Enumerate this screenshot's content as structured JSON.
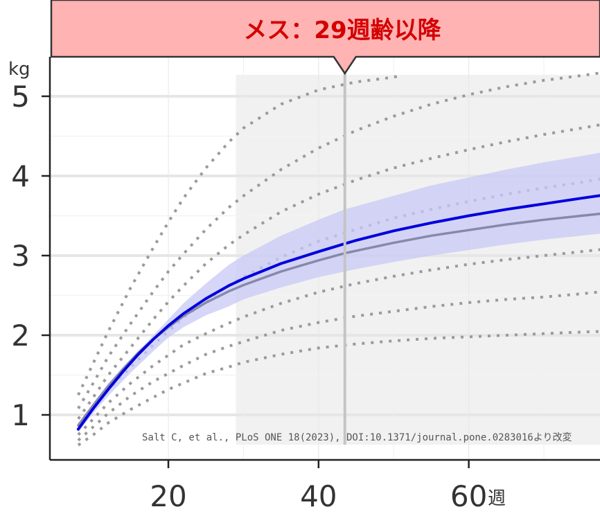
{
  "banner": {
    "text": "メス：29週齢以降",
    "bg_color": "#ffb3b3",
    "text_color": "#d40000"
  },
  "citation": "Salt C, et al., PLoS ONE 18(2023), DOI:10.1371/journal.pone.0283016より改変",
  "chart_data": {
    "type": "line",
    "title": "",
    "xlabel": "週",
    "ylabel": "kg",
    "xlim": [
      5,
      78
    ],
    "ylim": [
      0.6,
      5.3
    ],
    "x_ticks": [
      20,
      40,
      60
    ],
    "x_tick_labels": [
      "20",
      "40",
      "60"
    ],
    "y_ticks": [
      1,
      2,
      3,
      4,
      5
    ],
    "y_tick_labels": [
      "1",
      "2",
      "3",
      "4",
      "5"
    ],
    "grid": true,
    "highlight_region": {
      "x_start": 29,
      "x_end": 78
    },
    "vertical_marker_x": 43.5,
    "series": [
      {
        "role": "main",
        "color": "#0000dd",
        "x": [
          8,
          10,
          12,
          14,
          16,
          18,
          20,
          22,
          25,
          28,
          30,
          35,
          40,
          43.5,
          45,
          50,
          55,
          60,
          65,
          70,
          75,
          78
        ],
        "values": [
          0.82,
          1.08,
          1.32,
          1.55,
          1.76,
          1.95,
          2.12,
          2.27,
          2.46,
          2.62,
          2.71,
          2.9,
          3.05,
          3.15,
          3.19,
          3.31,
          3.41,
          3.5,
          3.58,
          3.65,
          3.72,
          3.76
        ]
      },
      {
        "role": "reference",
        "color": "#8888aa",
        "x": [
          8,
          10,
          12,
          14,
          16,
          18,
          20,
          22,
          25,
          28,
          30,
          35,
          40,
          43.5,
          45,
          50,
          55,
          60,
          65,
          70,
          75,
          78
        ],
        "values": [
          0.87,
          1.12,
          1.36,
          1.58,
          1.78,
          1.95,
          2.1,
          2.24,
          2.41,
          2.55,
          2.63,
          2.8,
          2.94,
          3.03,
          3.06,
          3.16,
          3.25,
          3.32,
          3.39,
          3.45,
          3.5,
          3.53
        ]
      }
    ],
    "band": {
      "color": "#c8c8f5",
      "x": [
        8,
        10,
        12,
        15,
        18,
        20,
        22,
        25,
        28,
        30,
        35,
        40,
        43.5,
        45,
        50,
        55,
        60,
        65,
        70,
        75,
        78
      ],
      "lower": [
        0.78,
        1.02,
        1.24,
        1.53,
        1.8,
        1.97,
        2.1,
        2.25,
        2.36,
        2.45,
        2.6,
        2.73,
        2.8,
        2.83,
        2.92,
        3.0,
        3.07,
        3.14,
        3.2,
        3.25,
        3.28
      ],
      "upper": [
        0.88,
        1.15,
        1.4,
        1.7,
        2.0,
        2.2,
        2.4,
        2.65,
        2.88,
        3.0,
        3.25,
        3.45,
        3.58,
        3.62,
        3.75,
        3.88,
        3.98,
        4.08,
        4.17,
        4.25,
        4.3
      ]
    },
    "dotted_curves": [
      {
        "x": [
          8,
          10,
          12,
          15,
          18,
          20,
          22,
          25,
          28,
          30,
          35,
          40,
          45,
          50,
          55,
          60,
          65,
          70,
          75,
          78
        ],
        "values": [
          0.62,
          0.75,
          0.9,
          1.07,
          1.22,
          1.32,
          1.4,
          1.52,
          1.6,
          1.66,
          1.76,
          1.84,
          1.89,
          1.93,
          1.96,
          1.98,
          2.0,
          2.02,
          2.04,
          2.05
        ]
      },
      {
        "x": [
          8,
          10,
          12,
          15,
          18,
          20,
          22,
          25,
          28,
          30,
          35,
          40,
          45,
          50,
          55,
          60,
          65,
          70,
          75,
          78
        ],
        "values": [
          0.68,
          0.85,
          1.02,
          1.24,
          1.42,
          1.52,
          1.62,
          1.76,
          1.86,
          1.92,
          2.06,
          2.16,
          2.24,
          2.3,
          2.36,
          2.41,
          2.45,
          2.48,
          2.52,
          2.55
        ]
      },
      {
        "x": [
          8,
          10,
          12,
          15,
          18,
          20,
          22,
          25,
          28,
          30,
          35,
          40,
          45,
          50,
          55,
          60,
          65,
          70,
          75,
          78
        ],
        "values": [
          0.75,
          0.95,
          1.15,
          1.4,
          1.62,
          1.75,
          1.88,
          2.02,
          2.15,
          2.23,
          2.4,
          2.54,
          2.65,
          2.74,
          2.82,
          2.89,
          2.95,
          3.0,
          3.05,
          3.08
        ]
      },
      {
        "x": [
          8,
          10,
          12,
          15,
          18,
          20,
          22,
          25,
          28,
          30,
          35,
          40,
          45,
          50,
          55,
          60,
          65,
          70,
          75,
          78
        ],
        "values": [
          0.85,
          1.08,
          1.32,
          1.6,
          1.88,
          2.05,
          2.22,
          2.43,
          2.62,
          2.73,
          2.98,
          3.18,
          3.33,
          3.47,
          3.58,
          3.68,
          3.77,
          3.85,
          3.92,
          3.97
        ]
      },
      {
        "x": [
          8,
          10,
          12,
          15,
          18,
          20,
          22,
          25,
          28,
          30,
          35,
          40,
          45,
          50,
          55,
          60,
          65,
          70,
          75,
          78
        ],
        "values": [
          0.95,
          1.22,
          1.5,
          1.85,
          2.2,
          2.42,
          2.62,
          2.9,
          3.13,
          3.26,
          3.55,
          3.77,
          3.95,
          4.1,
          4.22,
          4.33,
          4.43,
          4.52,
          4.6,
          4.65
        ]
      },
      {
        "x": [
          8,
          10,
          12,
          15,
          18,
          20,
          22,
          25,
          28,
          30,
          35,
          40,
          45,
          50,
          55,
          60,
          65,
          70,
          75,
          78
        ],
        "values": [
          1.08,
          1.4,
          1.73,
          2.15,
          2.55,
          2.8,
          3.02,
          3.33,
          3.6,
          3.75,
          4.08,
          4.35,
          4.57,
          4.75,
          4.9,
          5.02,
          5.12,
          5.2,
          5.26,
          5.3
        ]
      },
      {
        "x": [
          8,
          10,
          12,
          15,
          18,
          20,
          22,
          25,
          28,
          30,
          35,
          40,
          45,
          50,
          51
        ],
        "values": [
          1.25,
          1.65,
          2.05,
          2.6,
          3.1,
          3.42,
          3.72,
          4.1,
          4.42,
          4.6,
          4.9,
          5.08,
          5.18,
          5.24,
          5.26
        ]
      }
    ]
  }
}
